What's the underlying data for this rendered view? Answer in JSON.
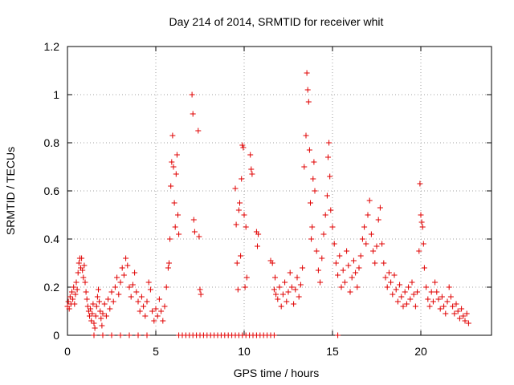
{
  "chart_data": {
    "type": "scatter",
    "title": "Day 214 of 2014, SRMTID for receiver whit",
    "xlabel": "GPS time / hours",
    "ylabel": "SRMTID / TECUs",
    "xlim": [
      0,
      24
    ],
    "ylim": [
      0,
      1.2
    ],
    "xticks": [
      0,
      5,
      10,
      15,
      20
    ],
    "xtick_labels": [
      "0",
      "5",
      "10",
      "15",
      "20"
    ],
    "yticks": [
      0,
      0.2,
      0.4,
      0.6,
      0.8,
      1,
      1.2
    ],
    "ytick_labels": [
      "0",
      "0.2",
      "0.4",
      "0.6",
      "0.8",
      "1",
      "1.2"
    ],
    "grid": true,
    "marker": "plus",
    "color": "#e00000",
    "series": [
      {
        "name": "SRMTID",
        "points": [
          [
            0.0,
            0.12
          ],
          [
            0.05,
            0.14
          ],
          [
            0.1,
            0.11
          ],
          [
            0.15,
            0.16
          ],
          [
            0.2,
            0.13
          ],
          [
            0.25,
            0.18
          ],
          [
            0.3,
            0.15
          ],
          [
            0.35,
            0.2
          ],
          [
            0.4,
            0.13
          ],
          [
            0.45,
            0.17
          ],
          [
            0.5,
            0.22
          ],
          [
            0.55,
            0.19
          ],
          [
            0.6,
            0.26
          ],
          [
            0.65,
            0.3
          ],
          [
            0.7,
            0.32
          ],
          [
            0.75,
            0.28
          ],
          [
            0.8,
            0.32
          ],
          [
            0.85,
            0.27
          ],
          [
            0.9,
            0.24
          ],
          [
            0.95,
            0.29
          ],
          [
            1.0,
            0.22
          ],
          [
            1.05,
            0.18
          ],
          [
            1.1,
            0.15
          ],
          [
            1.15,
            0.12
          ],
          [
            1.2,
            0.1
          ],
          [
            1.25,
            0.08
          ],
          [
            1.3,
            0.11
          ],
          [
            1.35,
            0.06
          ],
          [
            1.4,
            0.09
          ],
          [
            1.45,
            0.13
          ],
          [
            1.5,
            0.05
          ],
          [
            1.55,
            0.03
          ],
          [
            1.6,
            0.08
          ],
          [
            1.65,
            0.12
          ],
          [
            1.7,
            0.16
          ],
          [
            1.75,
            0.19
          ],
          [
            1.8,
            0.14
          ],
          [
            1.85,
            0.1
          ],
          [
            1.9,
            0.07
          ],
          [
            1.95,
            0.04
          ],
          [
            2.0,
            0.09
          ],
          [
            2.1,
            0.13
          ],
          [
            2.2,
            0.08
          ],
          [
            2.3,
            0.15
          ],
          [
            2.4,
            0.11
          ],
          [
            2.5,
            0.18
          ],
          [
            2.6,
            0.14
          ],
          [
            2.7,
            0.2
          ],
          [
            2.8,
            0.24
          ],
          [
            2.9,
            0.17
          ],
          [
            3.0,
            0.22
          ],
          [
            3.1,
            0.28
          ],
          [
            3.2,
            0.25
          ],
          [
            3.3,
            0.32
          ],
          [
            3.4,
            0.29
          ],
          [
            3.5,
            0.2
          ],
          [
            3.6,
            0.16
          ],
          [
            3.7,
            0.21
          ],
          [
            3.8,
            0.26
          ],
          [
            3.9,
            0.18
          ],
          [
            4.0,
            0.14
          ],
          [
            4.1,
            0.1
          ],
          [
            4.2,
            0.16
          ],
          [
            4.3,
            0.12
          ],
          [
            4.4,
            0.08
          ],
          [
            4.5,
            0.14
          ],
          [
            4.6,
            0.22
          ],
          [
            4.7,
            0.19
          ],
          [
            4.8,
            0.1
          ],
          [
            4.9,
            0.06
          ],
          [
            5.0,
            0.11
          ],
          [
            5.1,
            0.08
          ],
          [
            5.2,
            0.15
          ],
          [
            5.3,
            0.1
          ],
          [
            5.4,
            0.06
          ],
          [
            5.5,
            0.12
          ],
          [
            5.6,
            0.2
          ],
          [
            5.7,
            0.28
          ],
          [
            5.75,
            0.3
          ],
          [
            5.8,
            0.4
          ],
          [
            5.85,
            0.62
          ],
          [
            5.9,
            0.72
          ],
          [
            5.95,
            0.83
          ],
          [
            6.0,
            0.7
          ],
          [
            6.05,
            0.55
          ],
          [
            6.1,
            0.45
          ],
          [
            6.15,
            0.67
          ],
          [
            6.2,
            0.75
          ],
          [
            6.25,
            0.5
          ],
          [
            6.3,
            0.42
          ],
          [
            7.05,
            1.0
          ],
          [
            7.1,
            0.92
          ],
          [
            7.15,
            0.48
          ],
          [
            7.2,
            0.43
          ],
          [
            7.4,
            0.85
          ],
          [
            7.45,
            0.41
          ],
          [
            7.5,
            0.19
          ],
          [
            7.55,
            0.17
          ],
          [
            9.5,
            0.61
          ],
          [
            9.55,
            0.46
          ],
          [
            9.6,
            0.3
          ],
          [
            9.65,
            0.19
          ],
          [
            9.7,
            0.52
          ],
          [
            9.75,
            0.55
          ],
          [
            9.8,
            0.33
          ],
          [
            9.85,
            0.65
          ],
          [
            9.9,
            0.79
          ],
          [
            9.95,
            0.78
          ],
          [
            10.0,
            0.5
          ],
          [
            10.05,
            0.2
          ],
          [
            10.1,
            0.45
          ],
          [
            10.15,
            0.24
          ],
          [
            10.35,
            0.75
          ],
          [
            10.4,
            0.69
          ],
          [
            10.45,
            0.67
          ],
          [
            10.7,
            0.43
          ],
          [
            10.75,
            0.37
          ],
          [
            10.8,
            0.42
          ],
          [
            11.5,
            0.31
          ],
          [
            11.6,
            0.3
          ],
          [
            11.7,
            0.19
          ],
          [
            11.75,
            0.24
          ],
          [
            11.8,
            0.17
          ],
          [
            11.9,
            0.15
          ],
          [
            12.0,
            0.2
          ],
          [
            12.1,
            0.12
          ],
          [
            12.2,
            0.17
          ],
          [
            12.3,
            0.22
          ],
          [
            12.4,
            0.14
          ],
          [
            12.5,
            0.18
          ],
          [
            12.6,
            0.26
          ],
          [
            12.7,
            0.2
          ],
          [
            12.8,
            0.13
          ],
          [
            12.9,
            0.19
          ],
          [
            13.0,
            0.24
          ],
          [
            13.1,
            0.16
          ],
          [
            13.2,
            0.21
          ],
          [
            13.3,
            0.28
          ],
          [
            13.4,
            0.7
          ],
          [
            13.5,
            0.83
          ],
          [
            13.55,
            1.09
          ],
          [
            13.6,
            1.02
          ],
          [
            13.65,
            0.97
          ],
          [
            13.7,
            0.77
          ],
          [
            13.75,
            0.55
          ],
          [
            13.8,
            0.4
          ],
          [
            13.85,
            0.45
          ],
          [
            13.9,
            0.65
          ],
          [
            13.95,
            0.72
          ],
          [
            14.0,
            0.6
          ],
          [
            14.1,
            0.35
          ],
          [
            14.2,
            0.27
          ],
          [
            14.3,
            0.22
          ],
          [
            14.4,
            0.32
          ],
          [
            14.5,
            0.42
          ],
          [
            14.6,
            0.5
          ],
          [
            14.7,
            0.58
          ],
          [
            14.75,
            0.74
          ],
          [
            14.8,
            0.8
          ],
          [
            14.85,
            0.66
          ],
          [
            14.9,
            0.52
          ],
          [
            15.0,
            0.45
          ],
          [
            15.1,
            0.38
          ],
          [
            15.2,
            0.3
          ],
          [
            15.3,
            0.25
          ],
          [
            15.4,
            0.33
          ],
          [
            15.5,
            0.2
          ],
          [
            15.6,
            0.27
          ],
          [
            15.7,
            0.22
          ],
          [
            15.8,
            0.35
          ],
          [
            15.9,
            0.29
          ],
          [
            16.0,
            0.18
          ],
          [
            16.1,
            0.24
          ],
          [
            16.2,
            0.31
          ],
          [
            16.3,
            0.26
          ],
          [
            16.4,
            0.2
          ],
          [
            16.5,
            0.28
          ],
          [
            16.6,
            0.33
          ],
          [
            16.7,
            0.4
          ],
          [
            16.8,
            0.45
          ],
          [
            16.9,
            0.38
          ],
          [
            17.0,
            0.5
          ],
          [
            17.1,
            0.56
          ],
          [
            17.2,
            0.42
          ],
          [
            17.3,
            0.35
          ],
          [
            17.4,
            0.3
          ],
          [
            17.5,
            0.37
          ],
          [
            17.6,
            0.48
          ],
          [
            17.7,
            0.53
          ],
          [
            17.8,
            0.38
          ],
          [
            17.9,
            0.3
          ],
          [
            18.0,
            0.24
          ],
          [
            18.1,
            0.2
          ],
          [
            18.2,
            0.26
          ],
          [
            18.3,
            0.22
          ],
          [
            18.4,
            0.17
          ],
          [
            18.5,
            0.25
          ],
          [
            18.6,
            0.19
          ],
          [
            18.7,
            0.14
          ],
          [
            18.8,
            0.21
          ],
          [
            18.9,
            0.16
          ],
          [
            19.0,
            0.12
          ],
          [
            19.1,
            0.18
          ],
          [
            19.2,
            0.13
          ],
          [
            19.3,
            0.2
          ],
          [
            19.4,
            0.15
          ],
          [
            19.5,
            0.22
          ],
          [
            19.6,
            0.17
          ],
          [
            19.7,
            0.12
          ],
          [
            19.8,
            0.18
          ],
          [
            19.9,
            0.35
          ],
          [
            19.95,
            0.63
          ],
          [
            20.0,
            0.5
          ],
          [
            20.05,
            0.47
          ],
          [
            20.1,
            0.45
          ],
          [
            20.15,
            0.38
          ],
          [
            20.2,
            0.28
          ],
          [
            20.3,
            0.2
          ],
          [
            20.4,
            0.15
          ],
          [
            20.5,
            0.12
          ],
          [
            20.6,
            0.18
          ],
          [
            20.7,
            0.14
          ],
          [
            20.8,
            0.22
          ],
          [
            20.9,
            0.18
          ],
          [
            21.0,
            0.15
          ],
          [
            21.1,
            0.11
          ],
          [
            21.2,
            0.16
          ],
          [
            21.3,
            0.12
          ],
          [
            21.4,
            0.09
          ],
          [
            21.5,
            0.14
          ],
          [
            21.6,
            0.2
          ],
          [
            21.7,
            0.16
          ],
          [
            21.8,
            0.12
          ],
          [
            21.9,
            0.09
          ],
          [
            22.0,
            0.13
          ],
          [
            22.1,
            0.1
          ],
          [
            22.2,
            0.07
          ],
          [
            22.3,
            0.11
          ],
          [
            22.4,
            0.08
          ],
          [
            22.5,
            0.06
          ],
          [
            22.6,
            0.09
          ],
          [
            22.7,
            0.05
          ],
          [
            1.5,
            0.0
          ],
          [
            2.0,
            0.0
          ],
          [
            2.5,
            0.0
          ],
          [
            3.0,
            0.0
          ],
          [
            3.5,
            0.0
          ],
          [
            4.0,
            0.0
          ],
          [
            4.5,
            0.0
          ],
          [
            6.3,
            0.0
          ],
          [
            6.5,
            0.0
          ],
          [
            6.7,
            0.0
          ],
          [
            6.9,
            0.0
          ],
          [
            7.1,
            0.0
          ],
          [
            7.3,
            0.0
          ],
          [
            7.5,
            0.0
          ],
          [
            7.7,
            0.0
          ],
          [
            7.9,
            0.0
          ],
          [
            8.1,
            0.0
          ],
          [
            8.3,
            0.0
          ],
          [
            8.5,
            0.0
          ],
          [
            8.7,
            0.0
          ],
          [
            8.9,
            0.0
          ],
          [
            9.1,
            0.0
          ],
          [
            9.3,
            0.0
          ],
          [
            9.5,
            0.0
          ],
          [
            9.7,
            0.0
          ],
          [
            9.9,
            0.0
          ],
          [
            10.1,
            0.0
          ],
          [
            10.3,
            0.0
          ],
          [
            10.5,
            0.0
          ],
          [
            10.7,
            0.0
          ],
          [
            10.9,
            0.0
          ],
          [
            11.1,
            0.0
          ],
          [
            11.3,
            0.0
          ],
          [
            11.5,
            0.0
          ],
          [
            11.7,
            0.0
          ],
          [
            15.3,
            0.0
          ]
        ]
      }
    ]
  }
}
